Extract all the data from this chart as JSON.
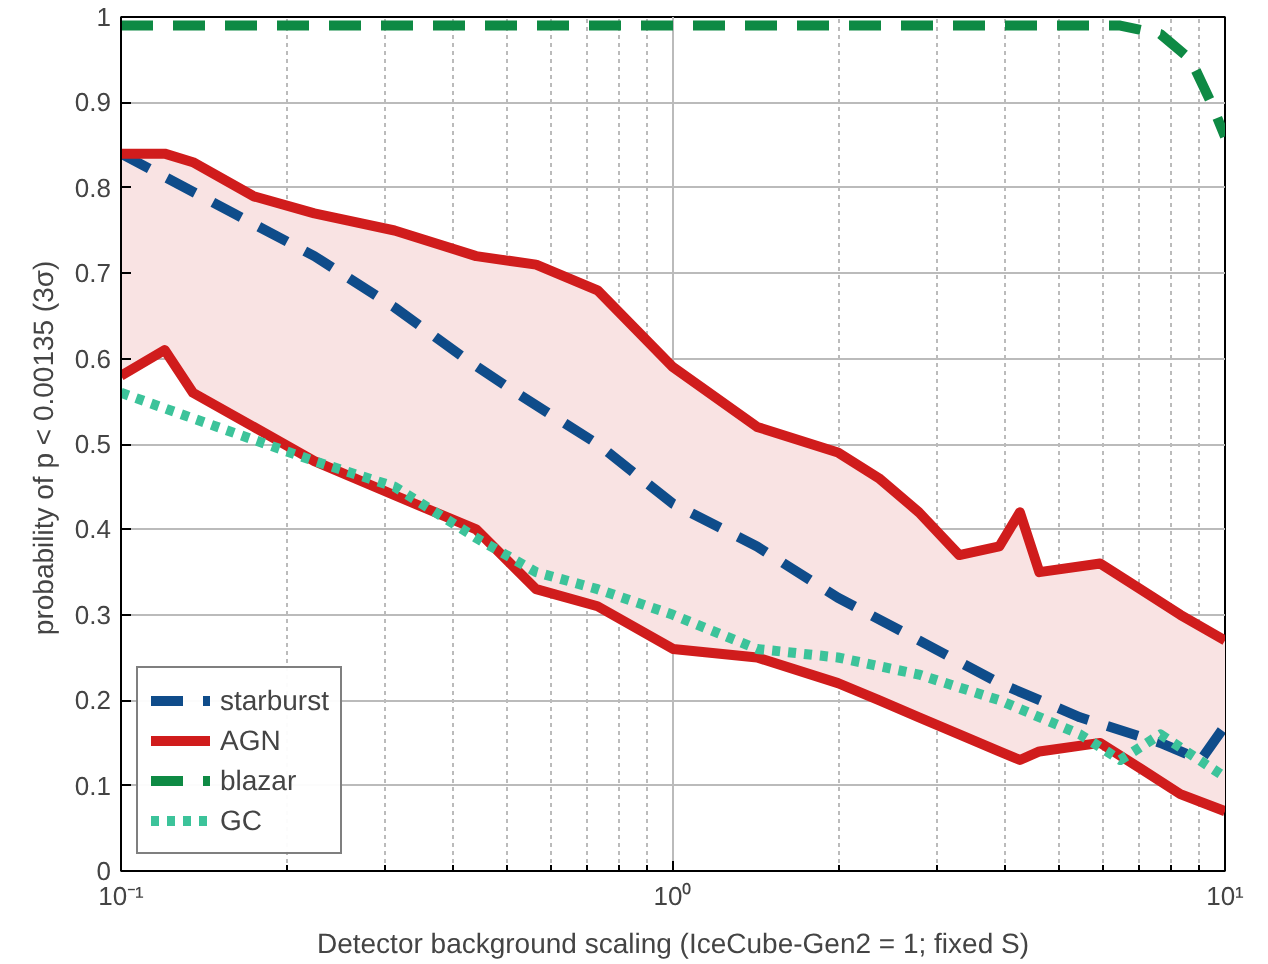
{
  "chart_data": {
    "type": "line",
    "xlabel": "Detector background scaling (IceCube-Gen2 = 1; fixed S)",
    "ylabel": "probability of p < 0.00135  (3σ)",
    "log": "x",
    "xlim": [
      0.1,
      10
    ],
    "ylim": [
      0,
      1
    ],
    "xticks": [
      {
        "value": 0.1,
        "label": "10⁻¹"
      },
      {
        "value": 1,
        "label": "10⁰"
      },
      {
        "value": 10,
        "label": "10¹"
      }
    ],
    "yticks": [
      0,
      0.1,
      0.2,
      0.3,
      0.4,
      0.5,
      0.6,
      0.7,
      0.8,
      0.9,
      1
    ],
    "grid": true,
    "legend": "bottom left",
    "series": [
      {
        "name": "starburst",
        "color": "#0f4c8a",
        "line_style": "dashed",
        "x": [
          0.1,
          0.16,
          0.224,
          0.313,
          0.42,
          0.52,
          0.73,
          1,
          1.42,
          1.99,
          2.79,
          3.9,
          5.46,
          7.64,
          9.04,
          10
        ],
        "values": [
          0.84,
          0.77,
          0.72,
          0.66,
          0.6,
          0.56,
          0.5,
          0.43,
          0.38,
          0.32,
          0.27,
          0.22,
          0.18,
          0.15,
          0.13,
          0.17
        ]
      },
      {
        "name": "AGN",
        "color": "#d01c1c",
        "line_style": "solid",
        "x": [
          0.1,
          0.12,
          0.135,
          0.174,
          0.224,
          0.313,
          0.44,
          0.565,
          0.73,
          1,
          1.42,
          1.99,
          2.36,
          2.79,
          3.3,
          3.9,
          4.25,
          4.61,
          5.94,
          7.03,
          8.3,
          10
        ],
        "values": [
          0.84,
          0.84,
          0.83,
          0.79,
          0.77,
          0.75,
          0.72,
          0.71,
          0.68,
          0.59,
          0.52,
          0.49,
          0.46,
          0.42,
          0.37,
          0.38,
          0.42,
          0.35,
          0.36,
          0.33,
          0.3,
          0.27
        ],
        "upper": [
          0.84,
          0.84,
          0.83,
          0.79,
          0.77,
          0.75,
          0.72,
          0.71,
          0.68,
          0.59,
          0.52,
          0.49,
          0.46,
          0.42,
          0.37,
          0.38,
          0.42,
          0.35,
          0.36,
          0.33,
          0.3,
          0.27
        ],
        "lower": [
          0.58,
          0.61,
          0.56,
          0.52,
          0.48,
          0.44,
          0.4,
          0.33,
          0.31,
          0.26,
          0.25,
          0.22,
          0.2,
          0.18,
          0.16,
          0.14,
          0.13,
          0.14,
          0.15,
          0.12,
          0.09,
          0.07
        ]
      },
      {
        "color": "#d01c1c",
        "line_style": "solid",
        "x": [
          0.1,
          0.12,
          0.135,
          0.174,
          0.224,
          0.313,
          0.44,
          0.565,
          0.73,
          1,
          1.42,
          1.99,
          2.36,
          2.79,
          3.3,
          3.9,
          4.25,
          4.61,
          5.94,
          7.03,
          8.3,
          10
        ],
        "values": [
          0.58,
          0.61,
          0.56,
          0.52,
          0.48,
          0.44,
          0.4,
          0.33,
          0.31,
          0.26,
          0.25,
          0.22,
          0.2,
          0.18,
          0.16,
          0.14,
          0.13,
          0.14,
          0.15,
          0.12,
          0.09,
          0.07
        ]
      },
      {
        "name": "blazar",
        "color": "#0e8a44",
        "line_style": "dashed",
        "x": [
          0.1,
          1,
          6.46,
          7.64,
          8.67,
          9.43,
          10
        ],
        "values": [
          0.99,
          0.99,
          0.99,
          0.98,
          0.95,
          0.9,
          0.86
        ]
      },
      {
        "name": "GC",
        "color": "#3cc39a",
        "line_style": "dotted",
        "x": [
          0.1,
          0.135,
          0.224,
          0.313,
          0.44,
          0.565,
          0.73,
          1,
          1.42,
          1.99,
          2.79,
          3.9,
          5.46,
          6.46,
          7.64,
          10
        ],
        "values": [
          0.56,
          0.53,
          0.48,
          0.45,
          0.39,
          0.35,
          0.33,
          0.3,
          0.26,
          0.25,
          0.23,
          0.2,
          0.16,
          0.13,
          0.16,
          0.11
        ]
      }
    ]
  }
}
